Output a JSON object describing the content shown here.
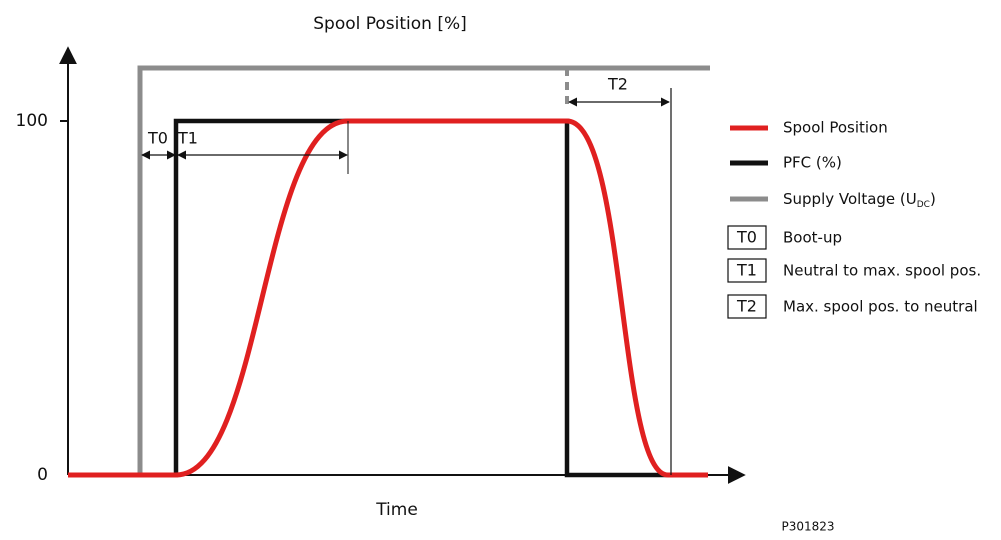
{
  "title": "Spool Position [%]",
  "y_labels": {
    "top": "100",
    "bottom": "0"
  },
  "x_label": "Time",
  "figure_id": "P301823",
  "intervals": {
    "t0": "T0",
    "t1": "T1",
    "t2": "T2"
  },
  "legend": {
    "spool": "Spool Position",
    "pfc": "PFC (%)",
    "supply": {
      "text": "Supply Voltage (U",
      "sub": "DC",
      "after": ")"
    }
  },
  "key": [
    {
      "code": "T0",
      "label": "Boot-up"
    },
    {
      "code": "T1",
      "label": "Neutral to max. spool pos."
    },
    {
      "code": "T2",
      "label": "Max. spool pos. to neutral"
    }
  ]
}
